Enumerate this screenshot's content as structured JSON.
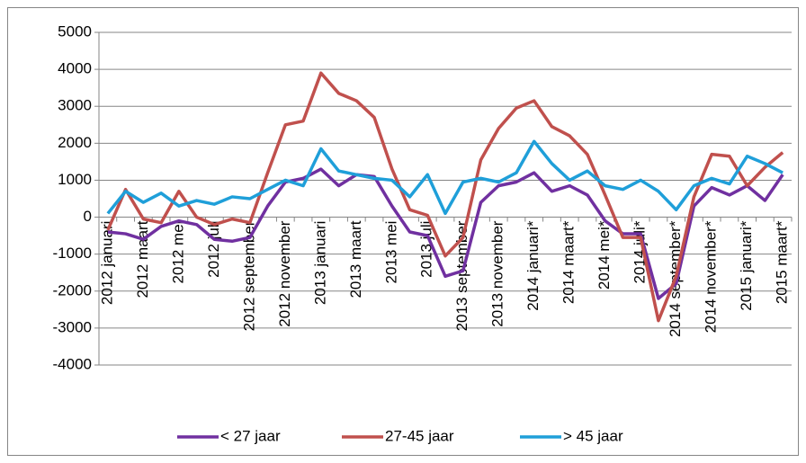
{
  "chart_data": {
    "type": "line",
    "categories": [
      "2012 januari",
      null,
      "2012 maart",
      null,
      "2012 mei",
      null,
      "2012 juli",
      null,
      "2012 september",
      null,
      "2012 november",
      null,
      "2013 januari",
      null,
      "2013 maart",
      null,
      "2013 mei",
      null,
      "2013 juli",
      null,
      "2013 september",
      null,
      "2013 november",
      null,
      "2014 januari*",
      null,
      "2014 maart*",
      null,
      "2014 mei*",
      null,
      "2014 juli*",
      null,
      "2014 september*",
      null,
      "2014 november*",
      null,
      "2015 januari*",
      null,
      "2015 maart*"
    ],
    "series": [
      {
        "name": "< 27 jaar",
        "color": "#7030a0",
        "values": [
          -400,
          -450,
          -600,
          -250,
          -100,
          -200,
          -600,
          -650,
          -550,
          300,
          950,
          1050,
          1300,
          850,
          1150,
          1100,
          300,
          -400,
          -500,
          -1600,
          -1450,
          400,
          850,
          950,
          1200,
          700,
          850,
          600,
          -100,
          -450,
          -450,
          -2200,
          -1800,
          300,
          800,
          600,
          850,
          450,
          1150
        ]
      },
      {
        "name": "27-45 jaar",
        "color": "#c0504d",
        "values": [
          -350,
          750,
          -50,
          -150,
          700,
          0,
          -200,
          -50,
          -150,
          1200,
          2500,
          2600,
          3900,
          3350,
          3150,
          2700,
          1300,
          200,
          50,
          -1050,
          -550,
          1550,
          2400,
          2950,
          3150,
          2450,
          2200,
          1700,
          600,
          -550,
          -550,
          -2800,
          -1600,
          550,
          1700,
          1650,
          850,
          1350,
          1750
        ]
      },
      {
        "name": "> 45 jaar",
        "color": "#1f9fd9",
        "values": [
          100,
          700,
          400,
          650,
          300,
          450,
          350,
          550,
          500,
          750,
          1000,
          850,
          1850,
          1250,
          1150,
          1050,
          1000,
          550,
          1150,
          100,
          950,
          1050,
          950,
          1200,
          2050,
          1450,
          1000,
          1250,
          850,
          750,
          1000,
          700,
          200,
          850,
          1050,
          900,
          1650,
          1450,
          1200
        ]
      }
    ],
    "ylim": [
      -4000,
      5000
    ],
    "yticks": [
      -4000,
      -3000,
      -2000,
      -1000,
      0,
      1000,
      2000,
      3000,
      4000,
      5000
    ],
    "grid": true,
    "legend": "bottom"
  }
}
